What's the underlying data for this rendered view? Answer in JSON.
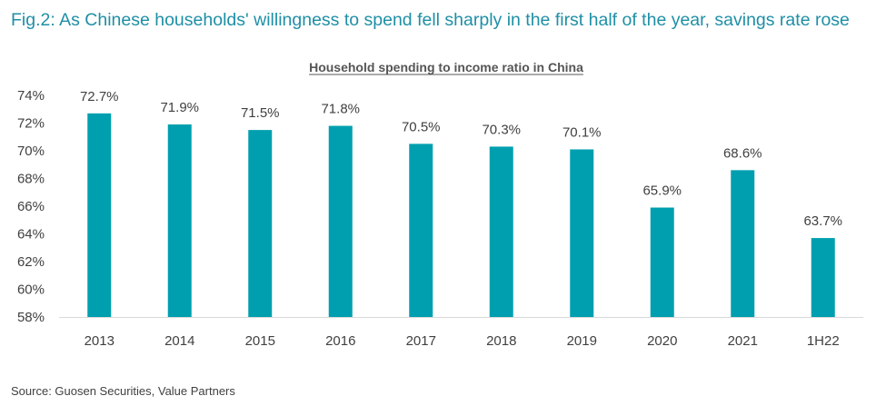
{
  "figure_title": "Fig.2: As Chinese households' willingness to spend fell sharply in the first half of the year, savings rate rose",
  "source": "Source: Guosen Securities, Value Partners",
  "colors": {
    "bar": "#009faf",
    "title": "#1f8fa6"
  },
  "chart_data": {
    "type": "bar",
    "title": "Household spending to income ratio in China",
    "xlabel": "",
    "ylabel": "",
    "categories": [
      "2013",
      "2014",
      "2015",
      "2016",
      "2017",
      "2018",
      "2019",
      "2020",
      "2021",
      "1H22"
    ],
    "values": [
      72.7,
      71.9,
      71.5,
      71.8,
      70.5,
      70.3,
      70.1,
      65.9,
      68.6,
      63.7
    ],
    "data_labels": [
      "72.7%",
      "71.9%",
      "71.5%",
      "71.8%",
      "70.5%",
      "70.3%",
      "70.1%",
      "65.9%",
      "68.6%",
      "63.7%"
    ],
    "ylim": [
      58,
      74
    ],
    "yticks": [
      58,
      60,
      62,
      64,
      66,
      68,
      70,
      72,
      74
    ],
    "ytick_labels": [
      "58%",
      "60%",
      "62%",
      "64%",
      "66%",
      "68%",
      "70%",
      "72%",
      "74%"
    ],
    "grid": false,
    "legend": "none"
  }
}
